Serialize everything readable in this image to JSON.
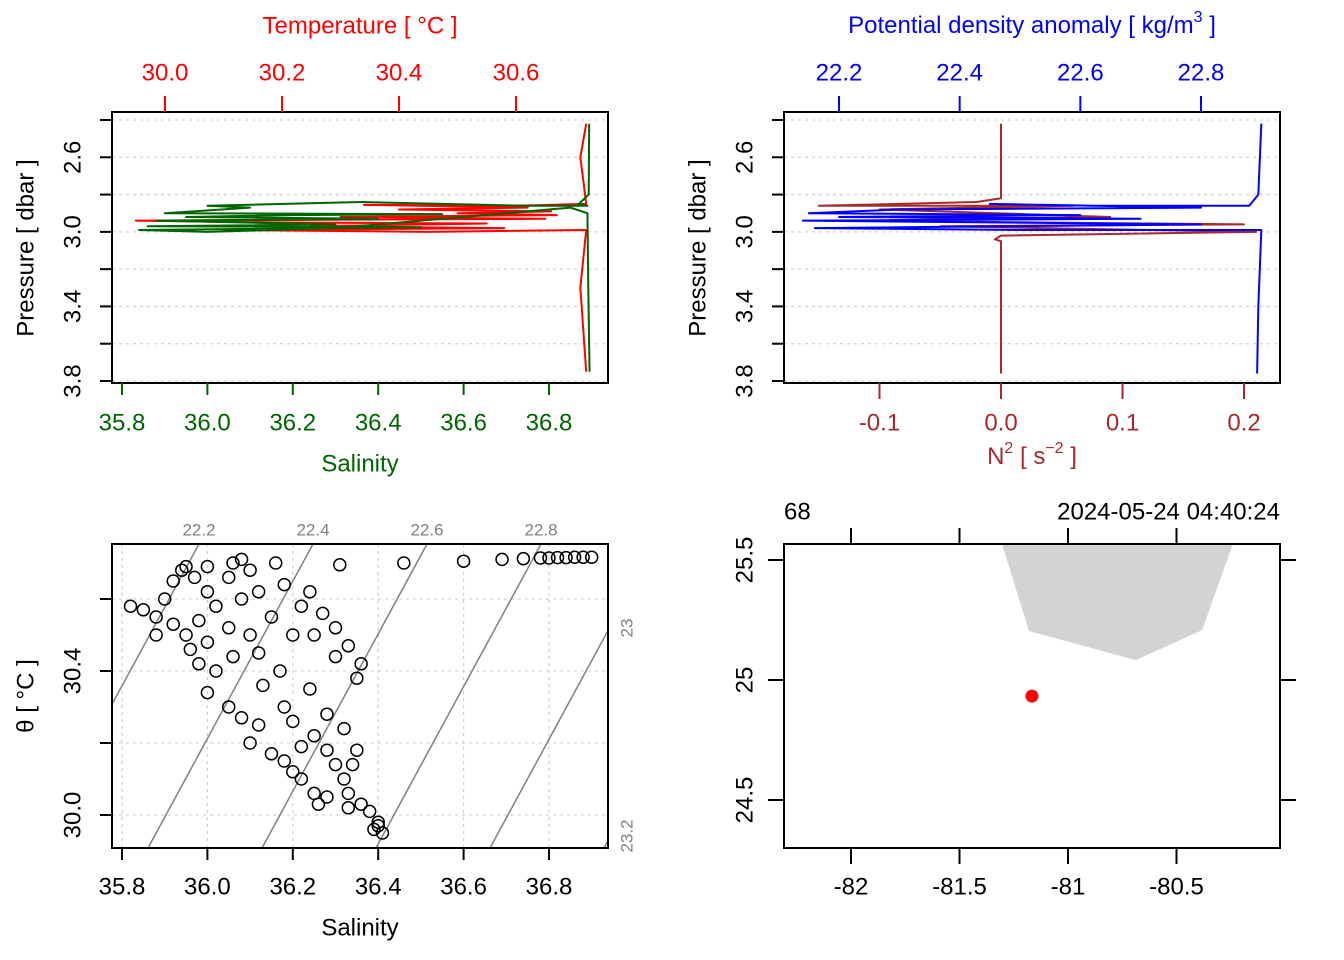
{
  "colors": {
    "temperature": "#ff0000",
    "salinity": "#006400",
    "density": "#0000ff",
    "n2": "#a52a2a",
    "land": "#d3d3d3",
    "station": "#ff0000",
    "isopycnal": "#808080"
  },
  "chart_data": [
    {
      "type": "line",
      "name": "profile-TS",
      "title": "Temperature [ °C ]",
      "xlabel": "Salinity",
      "ylabel": "Pressure [ dbar ]",
      "top_axis": {
        "label": "Temperature [ °C ]",
        "ticks": [
          "30.0",
          "30.2",
          "30.4",
          "30.6"
        ],
        "tick_values": [
          30.0,
          30.2,
          30.4,
          30.6
        ]
      },
      "bottom_axis": {
        "label": "Salinity",
        "ticks": [
          "35.8",
          "36.0",
          "36.2",
          "36.4",
          "36.6",
          "36.8"
        ],
        "tick_values": [
          35.8,
          36.0,
          36.2,
          36.4,
          36.6,
          36.8
        ]
      },
      "y_axis": {
        "ticks": [
          "2.6",
          "3.0",
          "3.4",
          "3.8"
        ],
        "tick_values": [
          2.6,
          3.0,
          3.4,
          3.8
        ],
        "minor_ticks": [
          2.4,
          2.8,
          3.2,
          3.6
        ],
        "reversed": true
      },
      "grid": true,
      "series": [
        {
          "name": "Salinity",
          "points": [
            [
              36.894,
              2.42
            ],
            [
              36.893,
              2.8
            ],
            [
              36.87,
              2.85
            ],
            [
              36.89,
              2.86
            ],
            [
              36.75,
              2.86
            ],
            [
              36.36,
              2.84
            ],
            [
              36.0,
              2.86
            ],
            [
              36.1,
              2.87
            ],
            [
              35.9,
              2.9
            ],
            [
              36.55,
              2.905
            ],
            [
              36.2,
              2.91
            ],
            [
              35.95,
              2.92
            ],
            [
              36.4,
              2.93
            ],
            [
              35.88,
              2.94
            ],
            [
              36.3,
              2.96
            ],
            [
              35.86,
              2.97
            ],
            [
              36.5,
              2.975
            ],
            [
              35.84,
              2.99
            ],
            [
              36.0,
              3.0
            ],
            [
              36.3,
              2.98
            ],
            [
              36.85,
              2.87
            ],
            [
              36.89,
              2.9
            ],
            [
              36.892,
              3.3
            ],
            [
              36.895,
              3.75
            ]
          ]
        },
        {
          "name": "Temperature",
          "points": [
            [
              30.72,
              2.42
            ],
            [
              30.71,
              2.6
            ],
            [
              30.72,
              2.85
            ],
            [
              30.6,
              2.86
            ],
            [
              30.34,
              2.855
            ],
            [
              30.62,
              2.87
            ],
            [
              30.4,
              2.88
            ],
            [
              30.66,
              2.89
            ],
            [
              30.5,
              2.9
            ],
            [
              30.67,
              2.91
            ],
            [
              30.3,
              2.92
            ],
            [
              30.65,
              2.93
            ],
            [
              29.95,
              2.94
            ],
            [
              30.2,
              2.95
            ],
            [
              30.55,
              2.955
            ],
            [
              30.25,
              2.97
            ],
            [
              30.58,
              2.98
            ],
            [
              30.1,
              2.99
            ],
            [
              30.45,
              3.0
            ],
            [
              30.72,
              2.99
            ],
            [
              30.71,
              3.3
            ],
            [
              30.72,
              3.75
            ]
          ]
        }
      ]
    },
    {
      "type": "line",
      "name": "profile-density-N2",
      "top_axis": {
        "label": "Potential density anomaly [ kg/m",
        "label_sup": "3",
        "label_end": " ]",
        "ticks": [
          "22.2",
          "22.4",
          "22.6",
          "22.8"
        ],
        "tick_values": [
          22.2,
          22.4,
          22.6,
          22.8
        ]
      },
      "bottom_axis": {
        "label": "N",
        "label_sup": "2",
        "label_mid": " [ s",
        "label_sup2": "−2",
        "label_end": " ]",
        "ticks": [
          "-0.1",
          "0.0",
          "0.1",
          "0.2"
        ],
        "tick_values": [
          -0.1,
          0.0,
          0.1,
          0.2
        ]
      },
      "ylabel": "Pressure [ dbar ]",
      "y_axis": {
        "ticks": [
          "2.6",
          "3.0",
          "3.4",
          "3.8"
        ],
        "tick_values": [
          2.6,
          3.0,
          3.4,
          3.8
        ],
        "minor_ticks": [
          2.4,
          2.8,
          3.2,
          3.6
        ],
        "reversed": true
      },
      "grid": true,
      "series": [
        {
          "name": "Potential density anomaly",
          "points": [
            [
              22.9,
              2.42
            ],
            [
              22.895,
              2.8
            ],
            [
              22.88,
              2.86
            ],
            [
              22.62,
              2.86
            ],
            [
              22.45,
              2.85
            ],
            [
              22.8,
              2.87
            ],
            [
              22.3,
              2.88
            ],
            [
              22.15,
              2.9
            ],
            [
              22.6,
              2.91
            ],
            [
              22.2,
              2.92
            ],
            [
              22.7,
              2.93
            ],
            [
              22.14,
              2.94
            ],
            [
              22.8,
              2.96
            ],
            [
              22.16,
              2.98
            ],
            [
              22.5,
              2.99
            ],
            [
              22.9,
              2.99
            ],
            [
              22.895,
              3.4
            ],
            [
              22.893,
              3.76
            ]
          ]
        },
        {
          "name": "N2",
          "points": [
            [
              0.0,
              2.42
            ],
            [
              0.0,
              2.82
            ],
            [
              -0.02,
              2.84
            ],
            [
              -0.15,
              2.86
            ],
            [
              0.06,
              2.86
            ],
            [
              -0.1,
              2.88
            ],
            [
              0.09,
              2.92
            ],
            [
              -0.12,
              2.94
            ],
            [
              0.2,
              2.96
            ],
            [
              -0.05,
              2.97
            ],
            [
              0.21,
              3.0
            ],
            [
              0.0,
              3.02
            ],
            [
              -0.005,
              3.04
            ],
            [
              0.0,
              3.05
            ],
            [
              0.0,
              3.76
            ]
          ]
        }
      ]
    },
    {
      "type": "scatter",
      "name": "TS-diagram",
      "xlabel": "Salinity",
      "ylabel": "θ [ °C ]",
      "x_axis": {
        "ticks": [
          "35.8",
          "36.0",
          "36.2",
          "36.4",
          "36.6",
          "36.8"
        ],
        "tick_values": [
          35.8,
          36.0,
          36.2,
          36.4,
          36.6,
          36.8
        ]
      },
      "y_axis": {
        "ticks": [
          "30.0",
          "30.4"
        ],
        "tick_values": [
          30.0,
          30.4
        ],
        "minor_ticks": [
          30.2,
          30.6
        ]
      },
      "grid": true,
      "isopycnal_labels_top": [
        "22.2",
        "22.4",
        "22.6",
        "22.8"
      ],
      "isopycnal_labels_right": [
        "23",
        "23.2"
      ],
      "points": [
        [
          36.31,
          30.695
        ],
        [
          36.46,
          30.7
        ],
        [
          36.6,
          30.705
        ],
        [
          36.69,
          30.71
        ],
        [
          36.74,
          30.712
        ],
        [
          36.78,
          30.714
        ],
        [
          36.8,
          30.714
        ],
        [
          36.82,
          30.715
        ],
        [
          36.84,
          30.715
        ],
        [
          36.86,
          30.716
        ],
        [
          36.88,
          30.716
        ],
        [
          36.9,
          30.716
        ],
        [
          36.16,
          30.7
        ],
        [
          36.06,
          30.7
        ],
        [
          36.08,
          30.71
        ],
        [
          36.0,
          30.69
        ],
        [
          35.95,
          30.69
        ],
        [
          35.82,
          30.58
        ],
        [
          35.85,
          30.57
        ],
        [
          35.88,
          30.55
        ],
        [
          35.9,
          30.6
        ],
        [
          35.92,
          30.65
        ],
        [
          35.94,
          30.68
        ],
        [
          35.97,
          30.66
        ],
        [
          36.0,
          30.62
        ],
        [
          36.02,
          30.58
        ],
        [
          35.98,
          30.54
        ],
        [
          35.95,
          30.5
        ],
        [
          35.92,
          30.53
        ],
        [
          35.88,
          30.5
        ],
        [
          35.96,
          30.46
        ],
        [
          36.0,
          30.48
        ],
        [
          36.05,
          30.52
        ],
        [
          36.08,
          30.6
        ],
        [
          36.05,
          30.66
        ],
        [
          36.1,
          30.68
        ],
        [
          36.12,
          30.62
        ],
        [
          36.15,
          30.55
        ],
        [
          36.1,
          30.5
        ],
        [
          36.06,
          30.44
        ],
        [
          36.02,
          30.4
        ],
        [
          35.98,
          30.42
        ],
        [
          36.12,
          30.45
        ],
        [
          36.17,
          30.4
        ],
        [
          36.13,
          30.36
        ],
        [
          36.2,
          30.5
        ],
        [
          36.22,
          30.58
        ],
        [
          36.18,
          30.64
        ],
        [
          36.24,
          30.62
        ],
        [
          36.27,
          30.56
        ],
        [
          36.3,
          30.52
        ],
        [
          36.33,
          30.47
        ],
        [
          36.36,
          30.42
        ],
        [
          36.35,
          30.38
        ],
        [
          36.3,
          30.44
        ],
        [
          36.25,
          30.5
        ],
        [
          36.0,
          30.34
        ],
        [
          36.05,
          30.3
        ],
        [
          36.08,
          30.27
        ],
        [
          36.12,
          30.25
        ],
        [
          36.1,
          30.2
        ],
        [
          36.15,
          30.17
        ],
        [
          36.18,
          30.15
        ],
        [
          36.2,
          30.12
        ],
        [
          36.22,
          30.1
        ],
        [
          36.25,
          30.06
        ],
        [
          36.26,
          30.03
        ],
        [
          36.28,
          30.05
        ],
        [
          36.22,
          30.19
        ],
        [
          36.25,
          30.22
        ],
        [
          36.28,
          30.18
        ],
        [
          36.3,
          30.14
        ],
        [
          36.32,
          30.1
        ],
        [
          36.33,
          30.06
        ],
        [
          36.35,
          30.18
        ],
        [
          36.32,
          30.24
        ],
        [
          36.36,
          30.03
        ],
        [
          36.38,
          30.01
        ],
        [
          36.4,
          29.98
        ],
        [
          36.41,
          29.95
        ],
        [
          36.4,
          29.97
        ],
        [
          36.39,
          29.96
        ],
        [
          36.18,
          30.3
        ],
        [
          36.24,
          30.35
        ],
        [
          36.2,
          30.26
        ],
        [
          36.28,
          30.28
        ],
        [
          36.34,
          30.14
        ],
        [
          36.33,
          30.02
        ]
      ]
    },
    {
      "type": "scatter",
      "name": "station-map",
      "top_left_label": "68",
      "top_right_label": "2024-05-24 04:40:24",
      "x_axis": {
        "ticks": [
          "-82",
          "-81.5",
          "-81",
          "-80.5"
        ],
        "tick_values": [
          -82,
          -81.5,
          -81,
          -80.5
        ]
      },
      "y_axis": {
        "ticks": [
          "24.5",
          "25",
          "25.5"
        ],
        "tick_values": [
          24.5,
          25,
          25.5
        ]
      },
      "land_polygon": [
        [
          -81.304,
          25.567
        ],
        [
          -81.18,
          25.204
        ],
        [
          -80.687,
          25.083
        ],
        [
          -80.382,
          25.208
        ],
        [
          -80.24,
          25.567
        ]
      ],
      "station": {
        "lon": -81.166,
        "lat": 24.933
      }
    }
  ]
}
